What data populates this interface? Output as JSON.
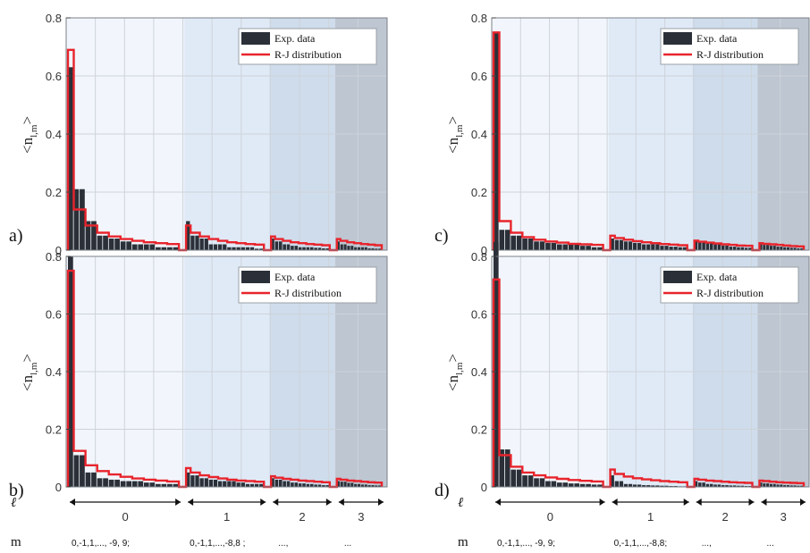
{
  "chart_data": [
    {
      "type": "bar",
      "panel": "a)",
      "ylabel": "<n_l,m>",
      "ylim": [
        0,
        0.8
      ],
      "yticks": [
        "0",
        "0.2",
        "0.4",
        "0.6",
        "0.8"
      ],
      "legend": {
        "placement": "top-right",
        "entries": [
          "Exp. data",
          "R-J distribution"
        ]
      },
      "groups": [
        {
          "l": 0,
          "exp": [
            0.63,
            0.21,
            0.21,
            0.1,
            0.1,
            0.05,
            0.05,
            0.04,
            0.04,
            0.03,
            0.03,
            0.02,
            0.02,
            0.02,
            0.02,
            0.01,
            0.01,
            0.01,
            0.01
          ],
          "rj": [
            0.69,
            0.14,
            0.14,
            0.085,
            0.085,
            0.06,
            0.06,
            0.047,
            0.047,
            0.038,
            0.038,
            0.032,
            0.032,
            0.027,
            0.027,
            0.024,
            0.024,
            0.021,
            0.021
          ]
        },
        {
          "l": 1,
          "exp": [
            0.1,
            0.05,
            0.05,
            0.04,
            0.04,
            0.02,
            0.02,
            0.02,
            0.02,
            0.01,
            0.01,
            0.01,
            0.01,
            0.01,
            0.01,
            0.005,
            0.005
          ],
          "rj": [
            0.085,
            0.06,
            0.06,
            0.047,
            0.047,
            0.038,
            0.038,
            0.032,
            0.032,
            0.027,
            0.027,
            0.024,
            0.024,
            0.021,
            0.021,
            0.019,
            0.019
          ]
        },
        {
          "l": 2,
          "exp": [
            0.04,
            0.03,
            0.03,
            0.02,
            0.02,
            0.015,
            0.015,
            0.01,
            0.01,
            0.01,
            0.01,
            0.008,
            0.008,
            0.006,
            0.006
          ],
          "rj": [
            0.047,
            0.038,
            0.038,
            0.032,
            0.032,
            0.027,
            0.027,
            0.024,
            0.024,
            0.021,
            0.021,
            0.019,
            0.019,
            0.017,
            0.017
          ]
        },
        {
          "l": 3,
          "exp": [
            0.03,
            0.02,
            0.02,
            0.015,
            0.015,
            0.01,
            0.01,
            0.01,
            0.01,
            0.006,
            0.006,
            0.005,
            0.005
          ],
          "rj": [
            0.038,
            0.032,
            0.032,
            0.027,
            0.027,
            0.024,
            0.024,
            0.021,
            0.021,
            0.019,
            0.019,
            0.017,
            0.017
          ]
        }
      ]
    },
    {
      "type": "bar",
      "panel": "b)",
      "ylabel": "<n_l,m>",
      "ylim": [
        0,
        0.8
      ],
      "yticks": [
        "0",
        "0.2",
        "0.4",
        "0.6",
        "0.8"
      ],
      "legend": {
        "placement": "top-right",
        "entries": [
          "Exp. data",
          "R-J distribution"
        ]
      },
      "groups": [
        {
          "l": 0,
          "exp": [
            0.8,
            0.11,
            0.11,
            0.05,
            0.05,
            0.03,
            0.03,
            0.025,
            0.025,
            0.02,
            0.02,
            0.02,
            0.02,
            0.015,
            0.015,
            0.01,
            0.01,
            0.01,
            0.01
          ],
          "rj": [
            0.75,
            0.125,
            0.125,
            0.075,
            0.075,
            0.055,
            0.055,
            0.043,
            0.043,
            0.035,
            0.035,
            0.029,
            0.029,
            0.025,
            0.025,
            0.022,
            0.022,
            0.019,
            0.019
          ]
        },
        {
          "l": 1,
          "exp": [
            0.05,
            0.04,
            0.04,
            0.03,
            0.03,
            0.025,
            0.025,
            0.02,
            0.02,
            0.02,
            0.02,
            0.015,
            0.015,
            0.01,
            0.01,
            0.01,
            0.01
          ],
          "rj": [
            0.065,
            0.05,
            0.05,
            0.04,
            0.04,
            0.034,
            0.034,
            0.029,
            0.029,
            0.025,
            0.025,
            0.022,
            0.022,
            0.02,
            0.02,
            0.018,
            0.018
          ]
        },
        {
          "l": 2,
          "exp": [
            0.03,
            0.025,
            0.025,
            0.02,
            0.02,
            0.015,
            0.015,
            0.012,
            0.012,
            0.01,
            0.01,
            0.008,
            0.008,
            0.006,
            0.006
          ],
          "rj": [
            0.037,
            0.032,
            0.032,
            0.028,
            0.028,
            0.025,
            0.025,
            0.022,
            0.022,
            0.02,
            0.02,
            0.018,
            0.018,
            0.016,
            0.016
          ]
        },
        {
          "l": 3,
          "exp": [
            0.02,
            0.018,
            0.018,
            0.014,
            0.014,
            0.01,
            0.01,
            0.008,
            0.008,
            0.006,
            0.006,
            0.005,
            0.005
          ],
          "rj": [
            0.028,
            0.025,
            0.025,
            0.022,
            0.022,
            0.02,
            0.02,
            0.018,
            0.018,
            0.016,
            0.016,
            0.015,
            0.015
          ]
        }
      ]
    },
    {
      "type": "bar",
      "panel": "c)",
      "ylabel": "<n_l,m>",
      "ylim": [
        0,
        0.8
      ],
      "yticks": [
        "0",
        "0.2",
        "0.4",
        "0.6",
        "0.8"
      ],
      "legend": {
        "placement": "top-right",
        "entries": [
          "Exp. data",
          "R-J distribution"
        ]
      },
      "groups": [
        {
          "l": 0,
          "exp": [
            0.75,
            0.07,
            0.07,
            0.05,
            0.05,
            0.04,
            0.04,
            0.03,
            0.03,
            0.025,
            0.025,
            0.02,
            0.02,
            0.02,
            0.02,
            0.015,
            0.015,
            0.01,
            0.01
          ],
          "rj": [
            0.75,
            0.1,
            0.1,
            0.06,
            0.06,
            0.045,
            0.045,
            0.036,
            0.036,
            0.03,
            0.03,
            0.026,
            0.026,
            0.022,
            0.022,
            0.02,
            0.02,
            0.018,
            0.018
          ]
        },
        {
          "l": 1,
          "exp": [
            0.04,
            0.035,
            0.035,
            0.03,
            0.03,
            0.025,
            0.025,
            0.02,
            0.02,
            0.02,
            0.02,
            0.015,
            0.015,
            0.012,
            0.012,
            0.01,
            0.01
          ],
          "rj": [
            0.05,
            0.042,
            0.042,
            0.036,
            0.036,
            0.031,
            0.031,
            0.027,
            0.027,
            0.024,
            0.024,
            0.021,
            0.021,
            0.019,
            0.019,
            0.017,
            0.017
          ]
        },
        {
          "l": 2,
          "exp": [
            0.03,
            0.028,
            0.028,
            0.024,
            0.024,
            0.02,
            0.02,
            0.016,
            0.016,
            0.012,
            0.012,
            0.01,
            0.01,
            0.008,
            0.008
          ],
          "rj": [
            0.033,
            0.029,
            0.029,
            0.026,
            0.026,
            0.023,
            0.023,
            0.02,
            0.02,
            0.018,
            0.018,
            0.016,
            0.016,
            0.015,
            0.015
          ]
        },
        {
          "l": 3,
          "exp": [
            0.02,
            0.018,
            0.018,
            0.015,
            0.015,
            0.012,
            0.012,
            0.01,
            0.01,
            0.008,
            0.008,
            0.006,
            0.006
          ],
          "rj": [
            0.024,
            0.022,
            0.022,
            0.02,
            0.02,
            0.018,
            0.018,
            0.016,
            0.016,
            0.014,
            0.014,
            0.013,
            0.013
          ]
        }
      ]
    },
    {
      "type": "bar",
      "panel": "d)",
      "ylabel": "<n_l,m>",
      "ylim": [
        0,
        0.8
      ],
      "yticks": [
        "0",
        "0.2",
        "0.4",
        "0.6",
        "0.8"
      ],
      "legend": {
        "placement": "top-right",
        "entries": [
          "Exp. data",
          "R-J distribution"
        ]
      },
      "groups": [
        {
          "l": 0,
          "exp": [
            0.85,
            0.13,
            0.13,
            0.06,
            0.06,
            0.04,
            0.04,
            0.03,
            0.03,
            0.02,
            0.02,
            0.015,
            0.015,
            0.012,
            0.012,
            0.01,
            0.01,
            0.008,
            0.008
          ],
          "rj": [
            0.72,
            0.11,
            0.11,
            0.07,
            0.07,
            0.05,
            0.05,
            0.04,
            0.04,
            0.033,
            0.033,
            0.028,
            0.028,
            0.024,
            0.024,
            0.021,
            0.021,
            0.019,
            0.019
          ]
        },
        {
          "l": 1,
          "exp": [
            0.04,
            0.02,
            0.02,
            0.01,
            0.01,
            0.008,
            0.008,
            0.006,
            0.006,
            0.005,
            0.005,
            0.004,
            0.004,
            0.003,
            0.003,
            0.002,
            0.002
          ],
          "rj": [
            0.06,
            0.045,
            0.045,
            0.036,
            0.036,
            0.03,
            0.03,
            0.026,
            0.026,
            0.023,
            0.023,
            0.02,
            0.02,
            0.018,
            0.018,
            0.016,
            0.016
          ]
        },
        {
          "l": 2,
          "exp": [
            0.02,
            0.015,
            0.015,
            0.01,
            0.01,
            0.008,
            0.008,
            0.006,
            0.006,
            0.005,
            0.005,
            0.004,
            0.004,
            0.003,
            0.003
          ],
          "rj": [
            0.028,
            0.025,
            0.025,
            0.022,
            0.022,
            0.02,
            0.02,
            0.018,
            0.018,
            0.016,
            0.016,
            0.015,
            0.015,
            0.014,
            0.014
          ]
        },
        {
          "l": 3,
          "exp": [
            0.015,
            0.012,
            0.012,
            0.01,
            0.01,
            0.008,
            0.008,
            0.006,
            0.006,
            0.005,
            0.005,
            0.004,
            0.004
          ],
          "rj": [
            0.022,
            0.02,
            0.02,
            0.018,
            0.018,
            0.016,
            0.016,
            0.015,
            0.015,
            0.014,
            0.014,
            0.013,
            0.013
          ]
        }
      ]
    }
  ],
  "axis_rows": {
    "l_symbol": "ℓ",
    "m_symbol": "m",
    "l_values": [
      "0",
      "1",
      "2",
      "3"
    ],
    "m_values": [
      "0,-1,1,..., -9, 9;",
      "0,-1,1,...,-8,8 ;",
      "...,",
      "..."
    ],
    "m_values_right": [
      "0,-1,1,..., -9, 9;",
      "0,-1,1,...,-8,8;",
      "...,",
      "..."
    ]
  },
  "colors": {
    "exp_bar": "#2b3038",
    "rj_line": "#e8242c",
    "band_l0": "#f2f6fc",
    "band_l1": "#e0eaf7",
    "band_l2": "#cfdcec",
    "band_l3": "#bdc6d1"
  }
}
